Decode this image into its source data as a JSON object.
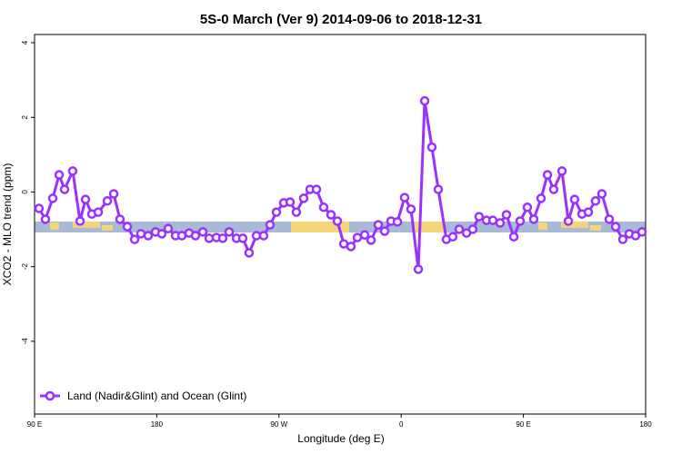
{
  "chart_data": {
    "type": "line",
    "title": "5S-0 March (Ver 9)   2014-09-06 to 2018-12-31",
    "x_label": "Longitude (deg E)",
    "y_label": "XCO2 - MLO trend (ppm)",
    "xlim": [
      90,
      540
    ],
    "ylim": [
      -5.95,
      4.22
    ],
    "xticks": [
      {
        "value": 90,
        "label": "90 E"
      },
      {
        "value": 180,
        "label": "180"
      },
      {
        "value": 270,
        "label": "90 W"
      },
      {
        "value": 360,
        "label": "0"
      },
      {
        "value": 450,
        "label": "90 E"
      },
      {
        "value": 540,
        "label": "180"
      }
    ],
    "yticks": [
      4,
      2,
      0,
      -2,
      -4
    ],
    "legend": "bottom-left",
    "x": [
      93.3,
      98.0,
      103.4,
      108.1,
      112.1,
      118.1,
      123.5,
      127.5,
      132.2,
      136.9,
      143.6,
      148.3,
      152.9,
      158.3,
      163.7,
      168.3,
      173.7,
      179.1,
      183.7,
      188.4,
      193.8,
      198.5,
      203.8,
      208.5,
      213.9,
      218.6,
      223.9,
      228.6,
      233.3,
      238.7,
      243.3,
      248.0,
      253.4,
      258.7,
      263.4,
      268.1,
      273.5,
      278.2,
      282.8,
      288.2,
      292.9,
      297.6,
      302.9,
      308.3,
      313.0,
      317.7,
      323.0,
      327.7,
      333.1,
      337.8,
      343.1,
      347.8,
      352.5,
      357.2,
      362.5,
      367.2,
      372.6,
      377.3,
      382.6,
      387.3,
      393.3,
      398.0,
      402.7,
      408.1,
      412.7,
      417.4,
      422.8,
      427.5,
      432.8,
      437.5,
      442.9,
      447.6,
      452.9,
      457.6,
      463.0,
      467.7,
      472.3,
      478.4,
      483.1,
      487.7,
      493.1,
      497.8,
      503.1,
      507.8,
      513.2,
      517.9,
      523.2,
      527.9,
      532.6,
      537.3
    ],
    "series": [
      {
        "name": "Land (Nadir&Glint) and Ocean (Glint)",
        "color": "#9b30ff",
        "values": [
          -0.44,
          -0.73,
          -0.17,
          0.46,
          0.07,
          0.56,
          -0.78,
          -0.2,
          -0.59,
          -0.54,
          -0.24,
          -0.05,
          -0.73,
          -0.93,
          -1.27,
          -1.12,
          -1.17,
          -1.07,
          -1.12,
          -0.98,
          -1.17,
          -1.17,
          -1.1,
          -1.17,
          -1.07,
          -1.24,
          -1.22,
          -1.24,
          -1.07,
          -1.24,
          -1.24,
          -1.63,
          -1.17,
          -1.17,
          -0.88,
          -0.54,
          -0.29,
          -0.27,
          -0.54,
          -0.17,
          0.07,
          0.07,
          -0.41,
          -0.61,
          -0.78,
          -1.39,
          -1.46,
          -1.22,
          -1.15,
          -1.29,
          -0.88,
          -1.05,
          -0.78,
          -0.8,
          -0.15,
          -0.46,
          -2.07,
          2.44,
          1.2,
          0.07,
          -1.27,
          -1.2,
          -1.0,
          -1.1,
          -1.0,
          -0.66,
          -0.76,
          -0.76,
          -0.83,
          -0.61,
          -1.2,
          -0.78,
          -0.41,
          -0.73,
          -0.17,
          0.46,
          0.07,
          0.56,
          -0.78,
          -0.2,
          -0.59,
          -0.54,
          -0.24,
          -0.05,
          -0.73,
          -0.93,
          -1.27,
          -1.12,
          -1.17,
          -1.07
        ]
      }
    ]
  }
}
